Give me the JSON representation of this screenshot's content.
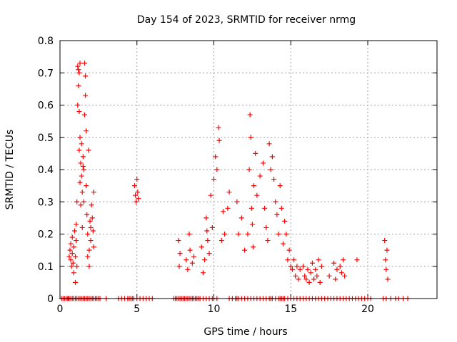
{
  "chart_data": {
    "type": "scatter",
    "title": "Day 154 of 2023, SRMTID for receiver nrmg",
    "xlabel": "GPS time / hours",
    "ylabel": "SRMTID / TECUs",
    "xlim": [
      0,
      24.5
    ],
    "ylim": [
      0,
      0.8
    ],
    "xticks": [
      0,
      5,
      10,
      15,
      20
    ],
    "yticks": [
      0,
      0.1,
      0.2,
      0.3,
      0.4,
      0.5,
      0.6,
      0.7,
      0.8
    ],
    "grid": true,
    "marker": "plus",
    "color": "#ff0000",
    "series": [
      {
        "name": "SRMTID",
        "points": [
          [
            0.6,
            0.13
          ],
          [
            0.65,
            0.15
          ],
          [
            0.7,
            0.12
          ],
          [
            0.7,
            0.17
          ],
          [
            0.75,
            0.1
          ],
          [
            0.8,
            0.14
          ],
          [
            0.8,
            0.19
          ],
          [
            0.85,
            0.11
          ],
          [
            0.9,
            0.16
          ],
          [
            0.9,
            0.08
          ],
          [
            0.95,
            0.21
          ],
          [
            1.0,
            0.13
          ],
          [
            1.0,
            0.05
          ],
          [
            1.05,
            0.18
          ],
          [
            1.05,
            0.23
          ],
          [
            1.1,
            0.1
          ],
          [
            1.1,
            0.3
          ],
          [
            1.15,
            0.6
          ],
          [
            1.15,
            0.72
          ],
          [
            1.2,
            0.71
          ],
          [
            1.2,
            0.66
          ],
          [
            1.25,
            0.7
          ],
          [
            1.25,
            0.58
          ],
          [
            1.25,
            0.46
          ],
          [
            1.3,
            0.73
          ],
          [
            1.3,
            0.5
          ],
          [
            1.3,
            0.36
          ],
          [
            1.35,
            0.29
          ],
          [
            1.35,
            0.42
          ],
          [
            1.4,
            0.48
          ],
          [
            1.4,
            0.38
          ],
          [
            1.45,
            0.33
          ],
          [
            1.45,
            0.22
          ],
          [
            1.5,
            0.44
          ],
          [
            1.5,
            0.41
          ],
          [
            1.55,
            0.4
          ],
          [
            1.55,
            0.3
          ],
          [
            1.6,
            0.57
          ],
          [
            1.6,
            0.73
          ],
          [
            1.65,
            0.69
          ],
          [
            1.65,
            0.63
          ],
          [
            1.7,
            0.52
          ],
          [
            1.7,
            0.35
          ],
          [
            1.75,
            0.26
          ],
          [
            1.8,
            0.2
          ],
          [
            1.8,
            0.13
          ],
          [
            1.85,
            0.46
          ],
          [
            1.9,
            0.15
          ],
          [
            1.9,
            0.1
          ],
          [
            1.95,
            0.24
          ],
          [
            2.0,
            0.22
          ],
          [
            2.0,
            0.18
          ],
          [
            2.05,
            0.29
          ],
          [
            2.1,
            0.25
          ],
          [
            2.15,
            0.21
          ],
          [
            2.2,
            0.33
          ],
          [
            2.2,
            0.16
          ],
          [
            4.85,
            0.35
          ],
          [
            4.9,
            0.32
          ],
          [
            4.95,
            0.3
          ],
          [
            5.0,
            0.37
          ],
          [
            5.05,
            0.33
          ],
          [
            5.1,
            0.31
          ],
          [
            7.7,
            0.18
          ],
          [
            7.75,
            0.1
          ],
          [
            7.8,
            0.14
          ],
          [
            8.2,
            0.12
          ],
          [
            8.3,
            0.09
          ],
          [
            8.4,
            0.2
          ],
          [
            8.45,
            0.15
          ],
          [
            8.6,
            0.11
          ],
          [
            8.7,
            0.13
          ],
          [
            9.2,
            0.16
          ],
          [
            9.3,
            0.08
          ],
          [
            9.4,
            0.12
          ],
          [
            9.5,
            0.25
          ],
          [
            9.55,
            0.21
          ],
          [
            9.6,
            0.18
          ],
          [
            9.7,
            0.14
          ],
          [
            9.8,
            0.32
          ],
          [
            9.9,
            0.22
          ],
          [
            10.0,
            0.37
          ],
          [
            10.1,
            0.44
          ],
          [
            10.2,
            0.4
          ],
          [
            10.3,
            0.53
          ],
          [
            10.35,
            0.49
          ],
          [
            10.5,
            0.18
          ],
          [
            10.6,
            0.27
          ],
          [
            10.7,
            0.2
          ],
          [
            10.9,
            0.28
          ],
          [
            11.0,
            0.33
          ],
          [
            11.5,
            0.3
          ],
          [
            11.6,
            0.2
          ],
          [
            11.8,
            0.25
          ],
          [
            12.0,
            0.15
          ],
          [
            12.2,
            0.2
          ],
          [
            12.3,
            0.4
          ],
          [
            12.35,
            0.57
          ],
          [
            12.4,
            0.5
          ],
          [
            12.45,
            0.28
          ],
          [
            12.5,
            0.23
          ],
          [
            12.55,
            0.16
          ],
          [
            12.6,
            0.35
          ],
          [
            12.7,
            0.45
          ],
          [
            12.8,
            0.32
          ],
          [
            13.0,
            0.38
          ],
          [
            13.2,
            0.42
          ],
          [
            13.3,
            0.28
          ],
          [
            13.4,
            0.22
          ],
          [
            13.5,
            0.18
          ],
          [
            13.6,
            0.48
          ],
          [
            13.7,
            0.4
          ],
          [
            13.8,
            0.44
          ],
          [
            13.9,
            0.37
          ],
          [
            14.0,
            0.3
          ],
          [
            14.1,
            0.26
          ],
          [
            14.2,
            0.2
          ],
          [
            14.3,
            0.35
          ],
          [
            14.4,
            0.28
          ],
          [
            14.5,
            0.17
          ],
          [
            14.6,
            0.24
          ],
          [
            14.7,
            0.2
          ],
          [
            14.8,
            0.12
          ],
          [
            14.9,
            0.15
          ],
          [
            15.0,
            0.1
          ],
          [
            15.1,
            0.09
          ],
          [
            15.2,
            0.12
          ],
          [
            15.3,
            0.07
          ],
          [
            15.4,
            0.1
          ],
          [
            15.5,
            0.06
          ],
          [
            15.6,
            0.09
          ],
          [
            15.8,
            0.1
          ],
          [
            15.9,
            0.07
          ],
          [
            16.0,
            0.06
          ],
          [
            16.1,
            0.09
          ],
          [
            16.2,
            0.05
          ],
          [
            16.3,
            0.08
          ],
          [
            16.4,
            0.11
          ],
          [
            16.5,
            0.06
          ],
          [
            16.6,
            0.09
          ],
          [
            16.7,
            0.07
          ],
          [
            16.8,
            0.12
          ],
          [
            16.9,
            0.05
          ],
          [
            17.0,
            0.1
          ],
          [
            17.5,
            0.07
          ],
          [
            17.8,
            0.11
          ],
          [
            17.9,
            0.06
          ],
          [
            18.0,
            0.09
          ],
          [
            18.2,
            0.1
          ],
          [
            18.3,
            0.08
          ],
          [
            18.4,
            0.12
          ],
          [
            18.5,
            0.07
          ],
          [
            19.3,
            0.12
          ],
          [
            21.1,
            0.18
          ],
          [
            21.15,
            0.12
          ],
          [
            21.2,
            0.09
          ],
          [
            21.25,
            0.15
          ],
          [
            21.3,
            0.06
          ]
        ],
        "zero_points_x": [
          0.1,
          0.2,
          0.3,
          0.4,
          0.5,
          0.55,
          0.6,
          0.7,
          0.8,
          0.9,
          1.0,
          1.1,
          1.2,
          1.3,
          1.4,
          1.5,
          1.6,
          1.7,
          1.8,
          1.9,
          2.0,
          2.1,
          2.2,
          2.3,
          2.4,
          2.5,
          2.6,
          3.0,
          3.8,
          4.0,
          4.2,
          4.4,
          4.5,
          4.6,
          4.7,
          4.8,
          5.0,
          5.2,
          5.4,
          5.6,
          5.8,
          6.0,
          7.4,
          7.5,
          7.6,
          7.7,
          7.8,
          7.9,
          8.0,
          8.1,
          8.2,
          8.3,
          8.4,
          8.5,
          8.6,
          8.7,
          8.8,
          8.9,
          9.0,
          9.1,
          9.3,
          9.5,
          9.7,
          9.9,
          10.0,
          10.2,
          11.0,
          11.2,
          11.4,
          11.5,
          11.6,
          11.8,
          12.0,
          12.2,
          12.4,
          12.6,
          12.8,
          13.0,
          13.2,
          13.4,
          13.6,
          13.7,
          13.8,
          14.0,
          14.2,
          14.3,
          14.4,
          14.5,
          14.6,
          14.8,
          15.0,
          15.2,
          15.4,
          15.6,
          15.8,
          16.0,
          16.2,
          16.4,
          16.6,
          16.8,
          17.0,
          17.2,
          17.4,
          17.6,
          17.8,
          18.0,
          18.2,
          18.4,
          18.6,
          18.8,
          19.0,
          19.2,
          19.4,
          19.6,
          19.8,
          20.0,
          20.2,
          21.0,
          21.2,
          21.5,
          21.8,
          22.0,
          22.3,
          22.6
        ]
      }
    ]
  }
}
